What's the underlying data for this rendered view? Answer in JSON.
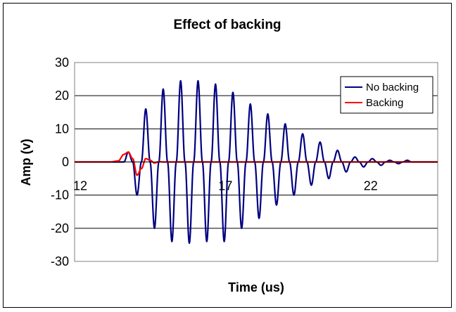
{
  "chart_data": {
    "type": "line",
    "title": "Effect of backing",
    "xlabel": "Time (us)",
    "ylabel": "Amp (v)",
    "xlim": [
      12,
      24.5
    ],
    "ylim": [
      -30,
      30
    ],
    "x_ticks": [
      12,
      17,
      22
    ],
    "x_tick_labels": [
      "12",
      "17",
      "22"
    ],
    "y_ticks": [
      30,
      20,
      10,
      0,
      -10,
      -20,
      -30
    ],
    "y_tick_labels": [
      "30",
      "20",
      "10",
      "0",
      "-10",
      "-20",
      "-30"
    ],
    "grid": "horizontal",
    "legend_position": "top-right",
    "colors": {
      "no_backing": "#000080",
      "backing": "#ff0000"
    },
    "series": [
      {
        "name": "No backing",
        "color": "#000080",
        "x": [
          12.0,
          13.2,
          13.7,
          13.85,
          14.0,
          14.15,
          14.3,
          14.45,
          14.6,
          14.75,
          14.9,
          15.05,
          15.2,
          15.35,
          15.5,
          15.65,
          15.8,
          15.95,
          16.1,
          16.25,
          16.4,
          16.55,
          16.7,
          16.85,
          17.0,
          17.15,
          17.3,
          17.45,
          17.6,
          17.75,
          17.9,
          18.05,
          18.2,
          18.35,
          18.5,
          18.65,
          18.8,
          18.95,
          19.1,
          19.25,
          19.4,
          19.55,
          19.7,
          19.85,
          20.0,
          20.15,
          20.3,
          20.45,
          20.6,
          20.75,
          20.9,
          21.05,
          21.2,
          21.35,
          21.5,
          21.65,
          21.8,
          21.95,
          22.1,
          22.25,
          22.4,
          22.55,
          22.7,
          22.85,
          23.0,
          23.15,
          23.3,
          23.45,
          23.6,
          23.75,
          23.9,
          24.05,
          24.2,
          24.35,
          24.5
        ],
        "values": [
          0,
          0,
          0,
          3,
          0,
          -10,
          0,
          16,
          0,
          -20,
          0,
          22,
          0,
          -24,
          0,
          24.5,
          0,
          -24.5,
          0,
          24.5,
          0,
          -24,
          0,
          23.5,
          0,
          -24,
          0,
          21,
          0,
          -20,
          0,
          17.5,
          0,
          -17,
          0,
          14.5,
          0,
          -13,
          0,
          11.5,
          0,
          -10,
          0,
          8.5,
          0,
          -7,
          0,
          6,
          0,
          -5,
          0,
          3.5,
          0,
          -3,
          0,
          1.5,
          0,
          -1.5,
          0,
          1,
          0,
          -1,
          0,
          0.5,
          0,
          -0.5,
          0,
          0.5,
          0,
          0,
          0,
          0,
          0,
          0,
          0
        ]
      },
      {
        "name": "Backing",
        "color": "#ff0000",
        "x": [
          12.0,
          13.2,
          13.5,
          13.7,
          13.85,
          14.0,
          14.15,
          14.3,
          14.45,
          14.6,
          14.75,
          14.9,
          15.05,
          15.2,
          16.0,
          18.0,
          20.0,
          22.0,
          24.5
        ],
        "values": [
          0,
          0,
          0.3,
          2.3,
          3,
          1,
          -4,
          -2,
          1,
          0.5,
          -0.3,
          0.1,
          0,
          0,
          0,
          0,
          0,
          0,
          0
        ]
      }
    ]
  }
}
